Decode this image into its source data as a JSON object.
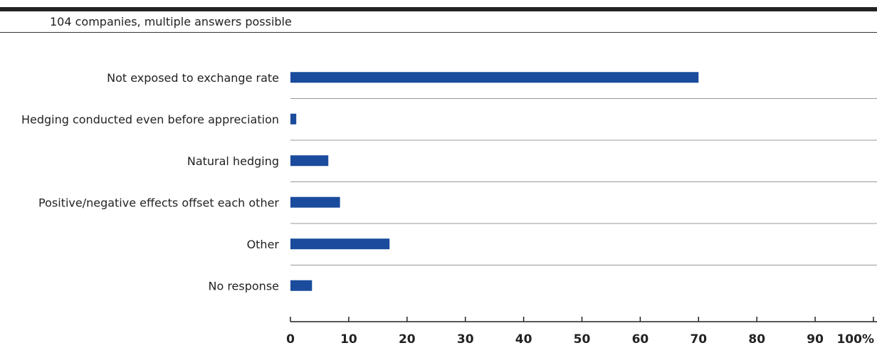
{
  "chart_data": {
    "type": "bar",
    "orientation": "horizontal",
    "subtitle": "104 companies, multiple answers possible",
    "categories": [
      "Not exposed to exchange rate",
      "Hedging conducted even before appreciation",
      "Natural hedging",
      "Positive/negative effects offset each other",
      "Other",
      "No response"
    ],
    "values": [
      70,
      1,
      6.5,
      8.5,
      17,
      3.7
    ],
    "xlim": [
      0,
      100
    ],
    "xticks": [
      "0",
      "10",
      "20",
      "30",
      "40",
      "50",
      "60",
      "70",
      "80",
      "90",
      "100%"
    ],
    "grid": false,
    "bar_color": "#1a4b9c"
  }
}
